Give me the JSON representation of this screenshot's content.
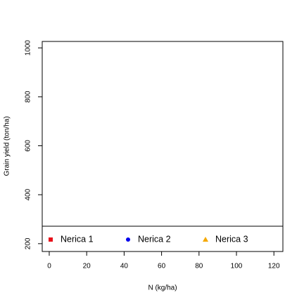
{
  "chart_data": {
    "type": "scatter",
    "xlabel": "N (kg/ha)",
    "ylabel": "Grain yield (ton/ha)",
    "xlim": [
      -4.8,
      124.8
    ],
    "xticks": [
      0,
      20,
      40,
      60,
      80,
      100,
      120
    ],
    "ylim": [
      168,
      1032
    ],
    "yticks": [
      200,
      400,
      600,
      800,
      1000
    ],
    "legend": "bottom",
    "series": [
      {
        "name": "Nerica 1",
        "color": "#e8101a",
        "marker": "square",
        "x": [],
        "values": []
      },
      {
        "name": "Nerica 2",
        "color": "#0000ee",
        "marker": "circle",
        "x": [],
        "values": []
      },
      {
        "name": "Nerica 3",
        "color": "#f5a800",
        "marker": "triangle",
        "x": [],
        "values": []
      }
    ]
  }
}
